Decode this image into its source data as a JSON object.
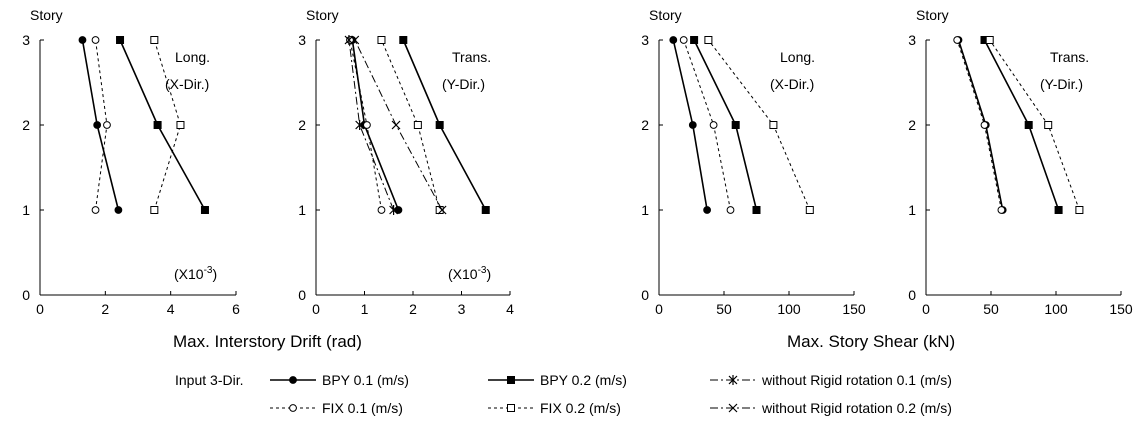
{
  "figure": {
    "drift_xlabel": "Max. Interstory Drift (rad)",
    "shear_xlabel": "Max. Story Shear (kN)"
  },
  "legend": {
    "prefix": "Input  3-Dir.",
    "entries": [
      {
        "series": "bpy01",
        "label": "BPY 0.1 (m/s)"
      },
      {
        "series": "bpy02",
        "label": "BPY 0.2 (m/s)"
      },
      {
        "series": "norr01",
        "label": "without Rigid rotation  0.1 (m/s)"
      },
      {
        "series": "fix01",
        "label": "FIX  0.1 (m/s)"
      },
      {
        "series": "fix02",
        "label": "FIX  0.2 (m/s)"
      },
      {
        "series": "norr02",
        "label": "without Rigid rotation  0.2 (m/s)"
      }
    ]
  },
  "series_styles": {
    "bpy01": {
      "dash": "solid",
      "marker": "circle",
      "fill": "#000000"
    },
    "bpy02": {
      "dash": "solid",
      "marker": "square",
      "fill": "#000000"
    },
    "fix01": {
      "dash": "dotted",
      "marker": "circle",
      "fill": "#ffffff"
    },
    "fix02": {
      "dash": "dotted",
      "marker": "square",
      "fill": "#ffffff"
    },
    "norr01": {
      "dash": "dashdot",
      "marker": "star",
      "fill": "#000000"
    },
    "norr02": {
      "dash": "dashdot",
      "marker": "x",
      "fill": "#000000"
    }
  },
  "chart_data": [
    {
      "type": "line",
      "ylabel": "Story",
      "xlim": [
        0,
        6
      ],
      "xticks": [
        "0",
        "2",
        "4",
        "6"
      ],
      "ylim": [
        0,
        3
      ],
      "yticks": [
        "0",
        "1",
        "2",
        "3"
      ],
      "direction_label": [
        "Long.",
        "(X-Dir.)"
      ],
      "scale_label": "(X10",
      "scale_exp": "-3",
      "scale_close": ")",
      "series": [
        {
          "key": "bpy01",
          "points": [
            [
              2.4,
              1
            ],
            [
              1.75,
              2
            ],
            [
              1.3,
              3
            ]
          ]
        },
        {
          "key": "fix01",
          "points": [
            [
              1.7,
              1
            ],
            [
              2.05,
              2
            ],
            [
              1.7,
              3
            ]
          ]
        },
        {
          "key": "bpy02",
          "points": [
            [
              5.05,
              1
            ],
            [
              3.6,
              2
            ],
            [
              2.45,
              3
            ]
          ]
        },
        {
          "key": "fix02",
          "points": [
            [
              3.5,
              1
            ],
            [
              4.3,
              2
            ],
            [
              3.5,
              3
            ]
          ]
        }
      ]
    },
    {
      "type": "line",
      "ylabel": "Story",
      "xlim": [
        0,
        4
      ],
      "xticks": [
        "0",
        "1",
        "2",
        "3",
        "4"
      ],
      "ylim": [
        0,
        3
      ],
      "yticks": [
        "0",
        "1",
        "2",
        "3"
      ],
      "direction_label": [
        "Trans.",
        "(Y-Dir.)"
      ],
      "scale_label": "(X10",
      "scale_exp": "-3",
      "scale_close": ")",
      "series": [
        {
          "key": "bpy01",
          "points": [
            [
              1.7,
              1
            ],
            [
              1.0,
              2
            ],
            [
              0.75,
              3
            ]
          ]
        },
        {
          "key": "fix01",
          "points": [
            [
              1.35,
              1
            ],
            [
              1.05,
              2
            ],
            [
              0.7,
              3
            ]
          ]
        },
        {
          "key": "bpy02",
          "points": [
            [
              3.5,
              1
            ],
            [
              2.55,
              2
            ],
            [
              1.8,
              3
            ]
          ]
        },
        {
          "key": "fix02",
          "points": [
            [
              2.55,
              1
            ],
            [
              2.1,
              2
            ],
            [
              1.35,
              3
            ]
          ]
        },
        {
          "key": "norr01",
          "points": [
            [
              1.6,
              1
            ],
            [
              0.9,
              2
            ],
            [
              0.68,
              3
            ]
          ]
        },
        {
          "key": "norr02",
          "points": [
            [
              2.6,
              1
            ],
            [
              1.65,
              2
            ],
            [
              0.8,
              3
            ]
          ]
        }
      ]
    },
    {
      "type": "line",
      "ylabel": "Story",
      "xlim": [
        0,
        150
      ],
      "xticks": [
        "0",
        "50",
        "100",
        "150"
      ],
      "ylim": [
        0,
        3
      ],
      "yticks": [
        "0",
        "1",
        "2",
        "3"
      ],
      "direction_label": [
        "Long.",
        "(X-Dir.)"
      ],
      "series": [
        {
          "key": "bpy01",
          "points": [
            [
              37,
              1
            ],
            [
              26,
              2
            ],
            [
              11,
              3
            ]
          ]
        },
        {
          "key": "fix01",
          "points": [
            [
              55,
              1
            ],
            [
              42,
              2
            ],
            [
              19,
              3
            ]
          ]
        },
        {
          "key": "bpy02",
          "points": [
            [
              75,
              1
            ],
            [
              59,
              2
            ],
            [
              27,
              3
            ]
          ]
        },
        {
          "key": "fix02",
          "points": [
            [
              116,
              1
            ],
            [
              88,
              2
            ],
            [
              38,
              3
            ]
          ]
        }
      ]
    },
    {
      "type": "line",
      "ylabel": "Story",
      "xlim": [
        0,
        150
      ],
      "xticks": [
        "0",
        "50",
        "100",
        "150"
      ],
      "ylim": [
        0,
        3
      ],
      "yticks": [
        "0",
        "1",
        "2",
        "3"
      ],
      "direction_label": [
        "Trans.",
        "(Y-Dir.)"
      ],
      "series": [
        {
          "key": "bpy01",
          "points": [
            [
              59,
              1
            ],
            [
              46,
              2
            ],
            [
              25,
              3
            ]
          ]
        },
        {
          "key": "fix01",
          "points": [
            [
              58,
              1
            ],
            [
              45,
              2
            ],
            [
              24,
              3
            ]
          ]
        },
        {
          "key": "bpy02",
          "points": [
            [
              102,
              1
            ],
            [
              79,
              2
            ],
            [
              45,
              3
            ]
          ]
        },
        {
          "key": "fix02",
          "points": [
            [
              118,
              1
            ],
            [
              94,
              2
            ],
            [
              49,
              3
            ]
          ]
        }
      ]
    }
  ]
}
